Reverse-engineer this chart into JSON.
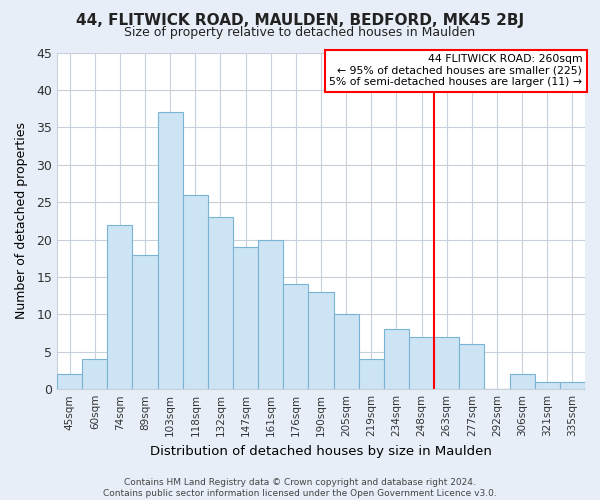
{
  "title": "44, FLITWICK ROAD, MAULDEN, BEDFORD, MK45 2BJ",
  "subtitle": "Size of property relative to detached houses in Maulden",
  "xlabel": "Distribution of detached houses by size in Maulden",
  "ylabel": "Number of detached properties",
  "bar_labels": [
    "45sqm",
    "60sqm",
    "74sqm",
    "89sqm",
    "103sqm",
    "118sqm",
    "132sqm",
    "147sqm",
    "161sqm",
    "176sqm",
    "190sqm",
    "205sqm",
    "219sqm",
    "234sqm",
    "248sqm",
    "263sqm",
    "277sqm",
    "292sqm",
    "306sqm",
    "321sqm",
    "335sqm"
  ],
  "bar_values": [
    2,
    4,
    22,
    18,
    37,
    26,
    23,
    19,
    20,
    14,
    13,
    10,
    4,
    8,
    7,
    7,
    6,
    0,
    2,
    1,
    1
  ],
  "bar_color": "#cce4f4",
  "bar_edge_color": "#7ab4d4",
  "ylim": [
    0,
    45
  ],
  "yticks": [
    0,
    5,
    10,
    15,
    20,
    25,
    30,
    35,
    40,
    45
  ],
  "red_line_x": 14.5,
  "annotation_title": "44 FLITWICK ROAD: 260sqm",
  "annotation_line1": "← 95% of detached houses are smaller (225)",
  "annotation_line2": "5% of semi-detached houses are larger (11) →",
  "footer_line1": "Contains HM Land Registry data © Crown copyright and database right 2024.",
  "footer_line2": "Contains public sector information licensed under the Open Government Licence v3.0.",
  "fig_bg_color": "#e8eef8",
  "plot_bg_color": "#ffffff",
  "grid_color": "#c8d0dc",
  "title_fontsize": 11,
  "subtitle_fontsize": 9
}
